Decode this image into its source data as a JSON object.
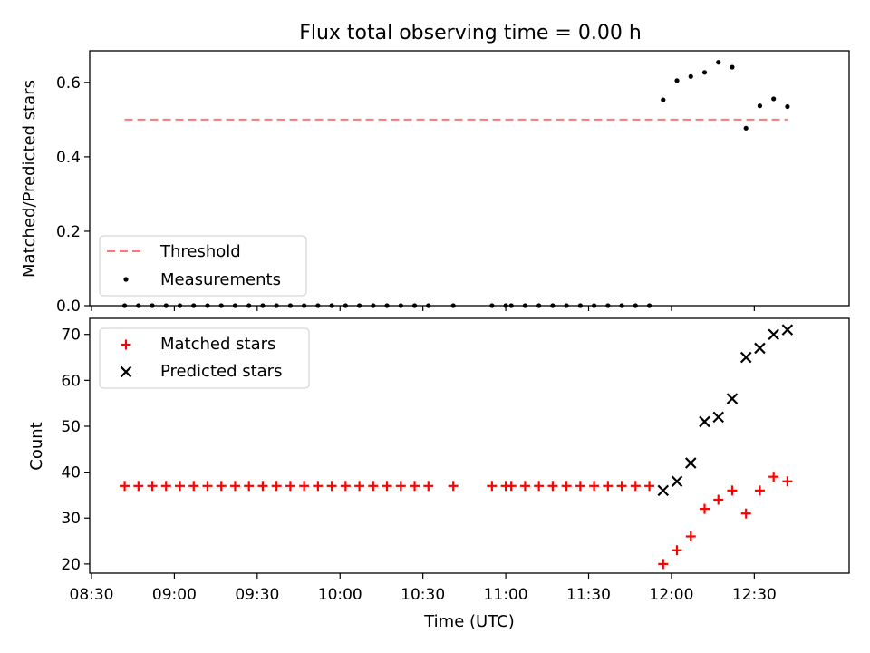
{
  "title": "Flux total observing time = 0.00 h",
  "colors": {
    "threshold": "#ff7777",
    "measurements": "#000000",
    "matched": "#ff0000",
    "predicted": "#000000"
  },
  "chart_data": [
    {
      "type": "scatter",
      "ylabel": "Matched/Predicted stars",
      "ylim": [
        0.0,
        0.685
      ],
      "yticks": [
        0.0,
        0.2,
        0.4,
        0.6
      ],
      "ytick_labels": [
        "0.0",
        "0.2",
        "0.4",
        "0.6"
      ],
      "xlim": [
        "08:30",
        "13:05"
      ],
      "legend_position": "lower-left",
      "legend": [
        "Threshold",
        "Measurements"
      ],
      "threshold": {
        "name": "Threshold",
        "value": 0.5,
        "x_start": "08:42",
        "x_end": "12:42"
      },
      "series": [
        {
          "name": "Measurements",
          "x": [
            "08:42",
            "08:47",
            "08:52",
            "08:57",
            "09:02",
            "09:07",
            "09:12",
            "09:17",
            "09:22",
            "09:27",
            "09:32",
            "09:37",
            "09:42",
            "09:47",
            "09:52",
            "09:57",
            "10:02",
            "10:07",
            "10:12",
            "10:17",
            "10:22",
            "10:27",
            "10:32",
            "10:41",
            "10:55",
            "11:00",
            "11:02",
            "11:07",
            "11:12",
            "11:17",
            "11:22",
            "11:27",
            "11:32",
            "11:37",
            "11:42",
            "11:47",
            "11:52",
            "11:57",
            "12:02",
            "12:07",
            "12:12",
            "12:17",
            "12:22",
            "12:27",
            "12:32",
            "12:37",
            "12:42"
          ],
          "y": [
            0,
            0,
            0,
            0,
            0,
            0,
            0,
            0,
            0,
            0,
            0,
            0,
            0,
            0,
            0,
            0,
            0,
            0,
            0,
            0,
            0,
            0,
            0,
            0,
            0,
            0,
            0,
            0,
            0,
            0,
            0,
            0,
            0,
            0,
            0,
            0,
            0,
            0.553,
            0.605,
            0.616,
            0.627,
            0.654,
            0.641,
            0.477,
            0.537,
            0.556,
            0.535
          ]
        }
      ]
    },
    {
      "type": "scatter",
      "xlabel": "Time (UTC)",
      "ylabel": "Count",
      "ylim": [
        18,
        73.5
      ],
      "yticks": [
        20,
        30,
        40,
        50,
        60,
        70
      ],
      "ytick_labels": [
        "20",
        "30",
        "40",
        "50",
        "60",
        "70"
      ],
      "xlim": [
        "08:30",
        "13:05"
      ],
      "xticks": [
        "08:30",
        "09:00",
        "09:30",
        "10:00",
        "10:30",
        "11:00",
        "11:30",
        "12:00",
        "12:30"
      ],
      "legend_position": "upper-left",
      "legend": [
        "Matched stars",
        "Predicted stars"
      ],
      "series": [
        {
          "name": "Matched stars",
          "marker": "+",
          "x": [
            "08:42",
            "08:47",
            "08:52",
            "08:57",
            "09:02",
            "09:07",
            "09:12",
            "09:17",
            "09:22",
            "09:27",
            "09:32",
            "09:37",
            "09:42",
            "09:47",
            "09:52",
            "09:57",
            "10:02",
            "10:07",
            "10:12",
            "10:17",
            "10:22",
            "10:27",
            "10:32",
            "10:41",
            "10:55",
            "11:00",
            "11:02",
            "11:07",
            "11:12",
            "11:17",
            "11:22",
            "11:27",
            "11:32",
            "11:37",
            "11:42",
            "11:47",
            "11:52",
            "11:57",
            "12:02",
            "12:07",
            "12:12",
            "12:17",
            "12:22",
            "12:27",
            "12:32",
            "12:37",
            "12:42"
          ],
          "y": [
            37,
            37,
            37,
            37,
            37,
            37,
            37,
            37,
            37,
            37,
            37,
            37,
            37,
            37,
            37,
            37,
            37,
            37,
            37,
            37,
            37,
            37,
            37,
            37,
            37,
            37,
            37,
            37,
            37,
            37,
            37,
            37,
            37,
            37,
            37,
            37,
            37,
            20,
            23,
            26,
            32,
            34,
            36,
            31,
            36,
            39,
            38
          ]
        },
        {
          "name": "Predicted stars",
          "marker": "x",
          "x": [
            "11:57",
            "12:02",
            "12:07",
            "12:12",
            "12:17",
            "12:22",
            "12:27",
            "12:32",
            "12:37",
            "12:42"
          ],
          "y": [
            36,
            38,
            42,
            51,
            52,
            56,
            65,
            67,
            70,
            71
          ]
        }
      ]
    }
  ]
}
